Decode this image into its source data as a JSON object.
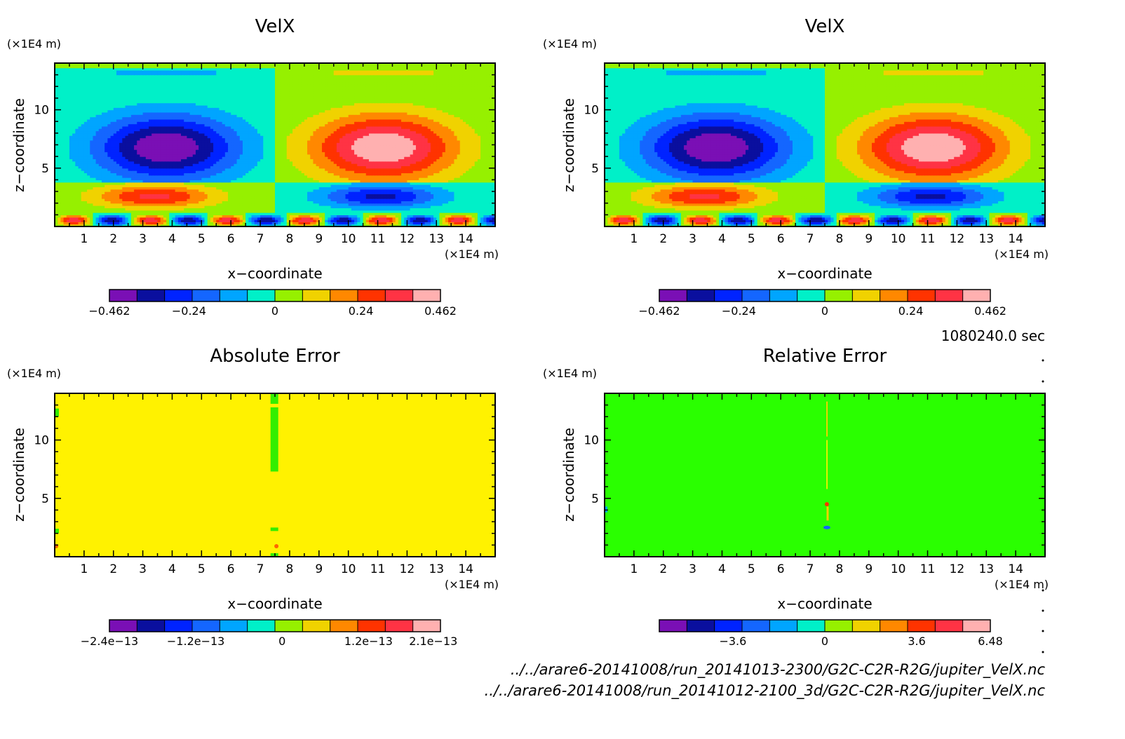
{
  "colorbar_palette": [
    "#7a0fb5",
    "#0a0f9e",
    "#0023ff",
    "#1466ff",
    "#00a5ff",
    "#00f0c8",
    "#96f000",
    "#f0d200",
    "#ff8800",
    "#ff3300",
    "#ff3344",
    "#ffb0b0"
  ],
  "time_label": "1080240.0 sec",
  "file_paths": [
    "../../arare6-20141008/run_20141013-2300/G2C-C2R-R2G/jupiter_VelX.nc",
    "../../arare6-20141008/run_20141012-2100_3d/G2C-C2R-R2G/jupiter_VelX.nc"
  ],
  "chart_data": [
    {
      "type": "heatmap",
      "title": "VelX",
      "xlabel": "x−coordinate",
      "ylabel": "z−coordinate",
      "x_unit": "(×1E4 m)",
      "y_unit": "(×1E4 m)",
      "xlim": [
        0,
        15
      ],
      "ylim": [
        0,
        14
      ],
      "x_ticks": [
        "1",
        "2",
        "3",
        "4",
        "5",
        "6",
        "7",
        "8",
        "9",
        "10",
        "11",
        "12",
        "13",
        "14"
      ],
      "y_ticks": [
        "5",
        "10"
      ],
      "colorbar_labels": [
        "−0.462",
        "−0.24",
        "0",
        "0.24",
        "0.462"
      ],
      "colorbar_values": [
        -0.462,
        -0.24,
        0,
        0.24,
        0.462
      ],
      "colorbar_range": [
        -0.462,
        0.462
      ],
      "field": "velx"
    },
    {
      "type": "heatmap",
      "title": "VelX",
      "xlabel": "x−coordinate",
      "ylabel": "z−coordinate",
      "x_unit": "(×1E4 m)",
      "y_unit": "(×1E4 m)",
      "xlim": [
        0,
        15
      ],
      "ylim": [
        0,
        14
      ],
      "x_ticks": [
        "1",
        "2",
        "3",
        "4",
        "5",
        "6",
        "7",
        "8",
        "9",
        "10",
        "11",
        "12",
        "13",
        "14"
      ],
      "y_ticks": [
        "5",
        "10"
      ],
      "colorbar_labels": [
        "−0.462",
        "−0.24",
        "0",
        "0.24",
        "0.462"
      ],
      "colorbar_values": [
        -0.462,
        -0.24,
        0,
        0.24,
        0.462
      ],
      "colorbar_range": [
        -0.462,
        0.462
      ],
      "field": "velx"
    },
    {
      "type": "heatmap",
      "title": "Absolute Error",
      "xlabel": "x−coordinate",
      "ylabel": "z−coordinate",
      "x_unit": "(×1E4 m)",
      "y_unit": "(×1E4 m)",
      "xlim": [
        0,
        15
      ],
      "ylim": [
        0,
        14
      ],
      "x_ticks": [
        "1",
        "2",
        "3",
        "4",
        "5",
        "6",
        "7",
        "8",
        "9",
        "10",
        "11",
        "12",
        "13",
        "14"
      ],
      "y_ticks": [
        "5",
        "10"
      ],
      "colorbar_labels": [
        "−2.4e−13",
        "−1.2e−13",
        "0",
        "1.2e−13",
        "2.1e−13"
      ],
      "colorbar_values": [
        -2.4e-13,
        -1.2e-13,
        0,
        1.2e-13,
        2.1e-13
      ],
      "colorbar_range": [
        -2.4e-13,
        2.2e-13
      ],
      "field": "abs_error",
      "background_color": "#fff200",
      "anomaly_color": "#33ee00"
    },
    {
      "type": "heatmap",
      "title": "Relative Error",
      "xlabel": "x−coordinate",
      "ylabel": "z−coordinate",
      "x_unit": "(×1E4 m)",
      "y_unit": "(×1E4 m)",
      "xlim": [
        0,
        15
      ],
      "ylim": [
        0,
        14
      ],
      "x_ticks": [
        "1",
        "2",
        "3",
        "4",
        "5",
        "6",
        "7",
        "8",
        "9",
        "10",
        "11",
        "12",
        "13",
        "14"
      ],
      "y_ticks": [
        "5",
        "10"
      ],
      "colorbar_labels": [
        "−3.6",
        "0",
        "3.6",
        "6.48"
      ],
      "colorbar_values": [
        -3.6,
        0,
        3.6,
        6.48
      ],
      "colorbar_range": [
        -6.48,
        6.48
      ],
      "field": "rel_error",
      "background_color": "#2aff00"
    }
  ]
}
